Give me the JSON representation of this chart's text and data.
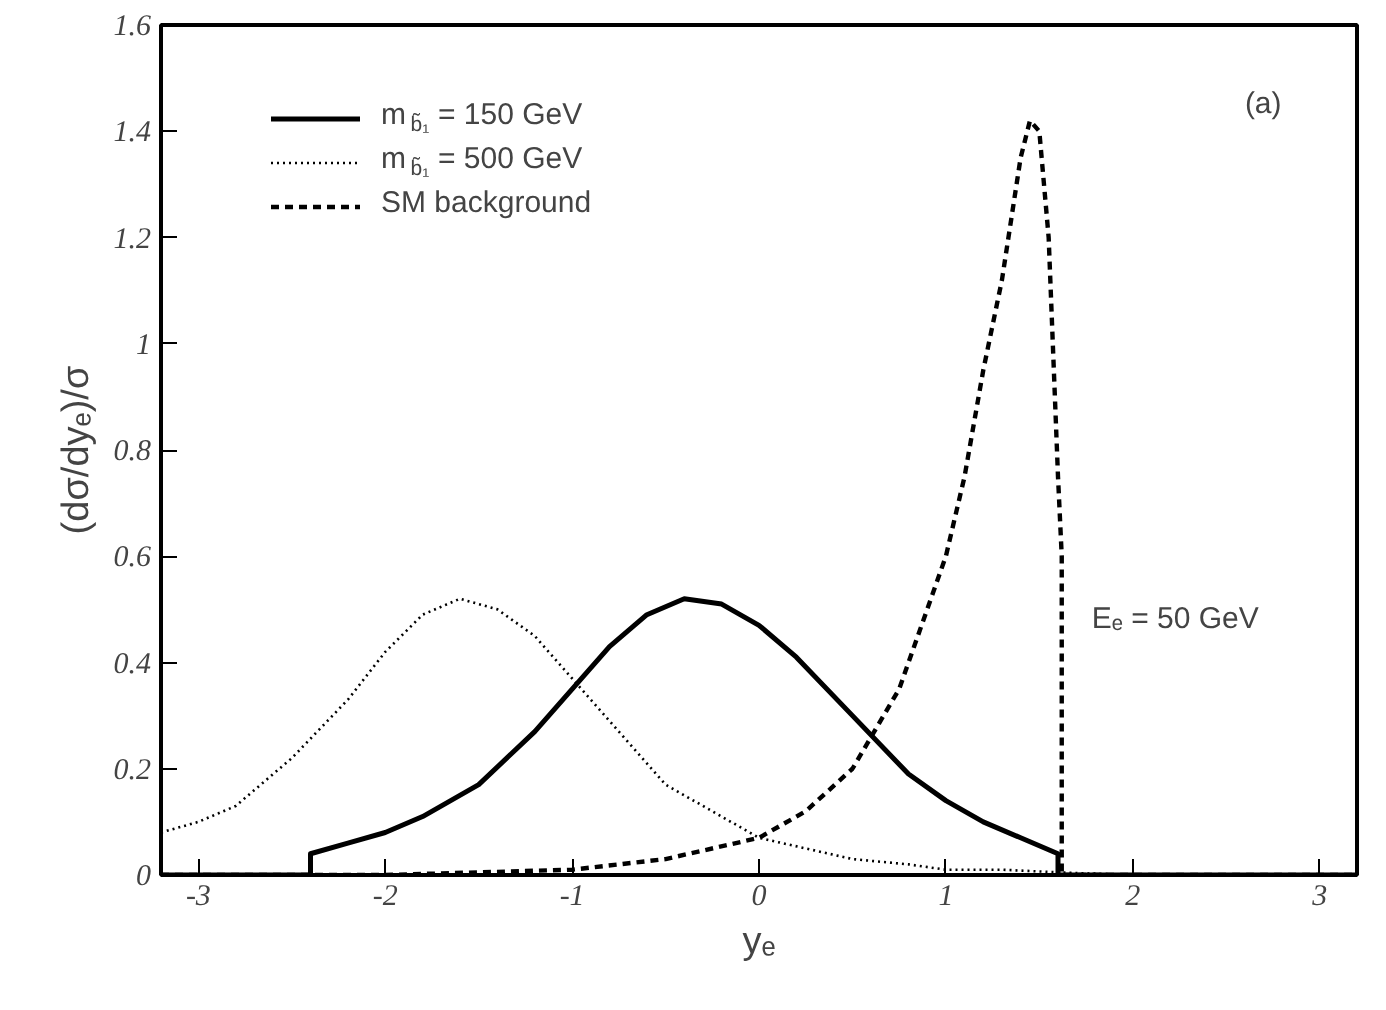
{
  "chart_data": {
    "type": "line",
    "xlabel": "yₑ",
    "ylabel": "(dσ/dyₑ)/σ",
    "xlim": [
      -3.2,
      3.2
    ],
    "ylim": [
      0,
      1.6
    ],
    "xticks": [
      -3,
      -2,
      -1,
      0,
      1,
      2,
      3
    ],
    "yticks": [
      0,
      0.2,
      0.4,
      0.6,
      0.8,
      1,
      1.2,
      1.4,
      1.6
    ],
    "grid": false,
    "legend": "top left",
    "annotations": [
      "(a)",
      "Eₑ = 50 GeV"
    ],
    "series": [
      {
        "name": "m$_{b̃₁}$ = 150 GeV",
        "color": "#000000",
        "line_style": "solid",
        "x": [
          -3.2,
          -2.4,
          -2.4,
          -2.2,
          -2.0,
          -1.8,
          -1.5,
          -1.2,
          -1.0,
          -0.8,
          -0.6,
          -0.4,
          -0.2,
          0,
          0.2,
          0.5,
          0.8,
          1.0,
          1.2,
          1.4,
          1.6,
          1.6,
          3.2
        ],
        "values": [
          0,
          0,
          0.04,
          0.06,
          0.08,
          0.11,
          0.17,
          0.27,
          0.35,
          0.43,
          0.49,
          0.52,
          0.51,
          0.47,
          0.41,
          0.3,
          0.19,
          0.14,
          0.1,
          0.07,
          0.04,
          0,
          0
        ]
      },
      {
        "name": "m$_{b̃₁}$ = 500 GeV",
        "color": "#000000",
        "line_style": "dotted",
        "x": [
          -3.2,
          -3.0,
          -2.8,
          -2.5,
          -2.2,
          -2.0,
          -1.8,
          -1.6,
          -1.4,
          -1.2,
          -1.0,
          -0.8,
          -0.5,
          -0.25,
          0,
          0.25,
          0.5,
          0.8,
          1.0,
          1.3,
          1.6,
          2.0,
          3.2
        ],
        "values": [
          0.08,
          0.1,
          0.13,
          0.22,
          0.33,
          0.42,
          0.49,
          0.52,
          0.5,
          0.45,
          0.37,
          0.29,
          0.17,
          0.12,
          0.07,
          0.05,
          0.03,
          0.02,
          0.01,
          0.01,
          0.005,
          0,
          0
        ]
      },
      {
        "name": "SM background",
        "color": "#000000",
        "line_style": "dashed",
        "x": [
          -3.2,
          -2.0,
          -1.0,
          -0.5,
          0,
          0.25,
          0.5,
          0.75,
          1.0,
          1.1,
          1.2,
          1.3,
          1.4,
          1.45,
          1.5,
          1.55,
          1.6,
          1.62,
          1.62,
          3.2
        ],
        "values": [
          0,
          0,
          0.01,
          0.03,
          0.07,
          0.12,
          0.2,
          0.35,
          0.6,
          0.75,
          0.95,
          1.12,
          1.35,
          1.42,
          1.4,
          1.2,
          0.75,
          0.6,
          0,
          0
        ]
      }
    ]
  }
}
